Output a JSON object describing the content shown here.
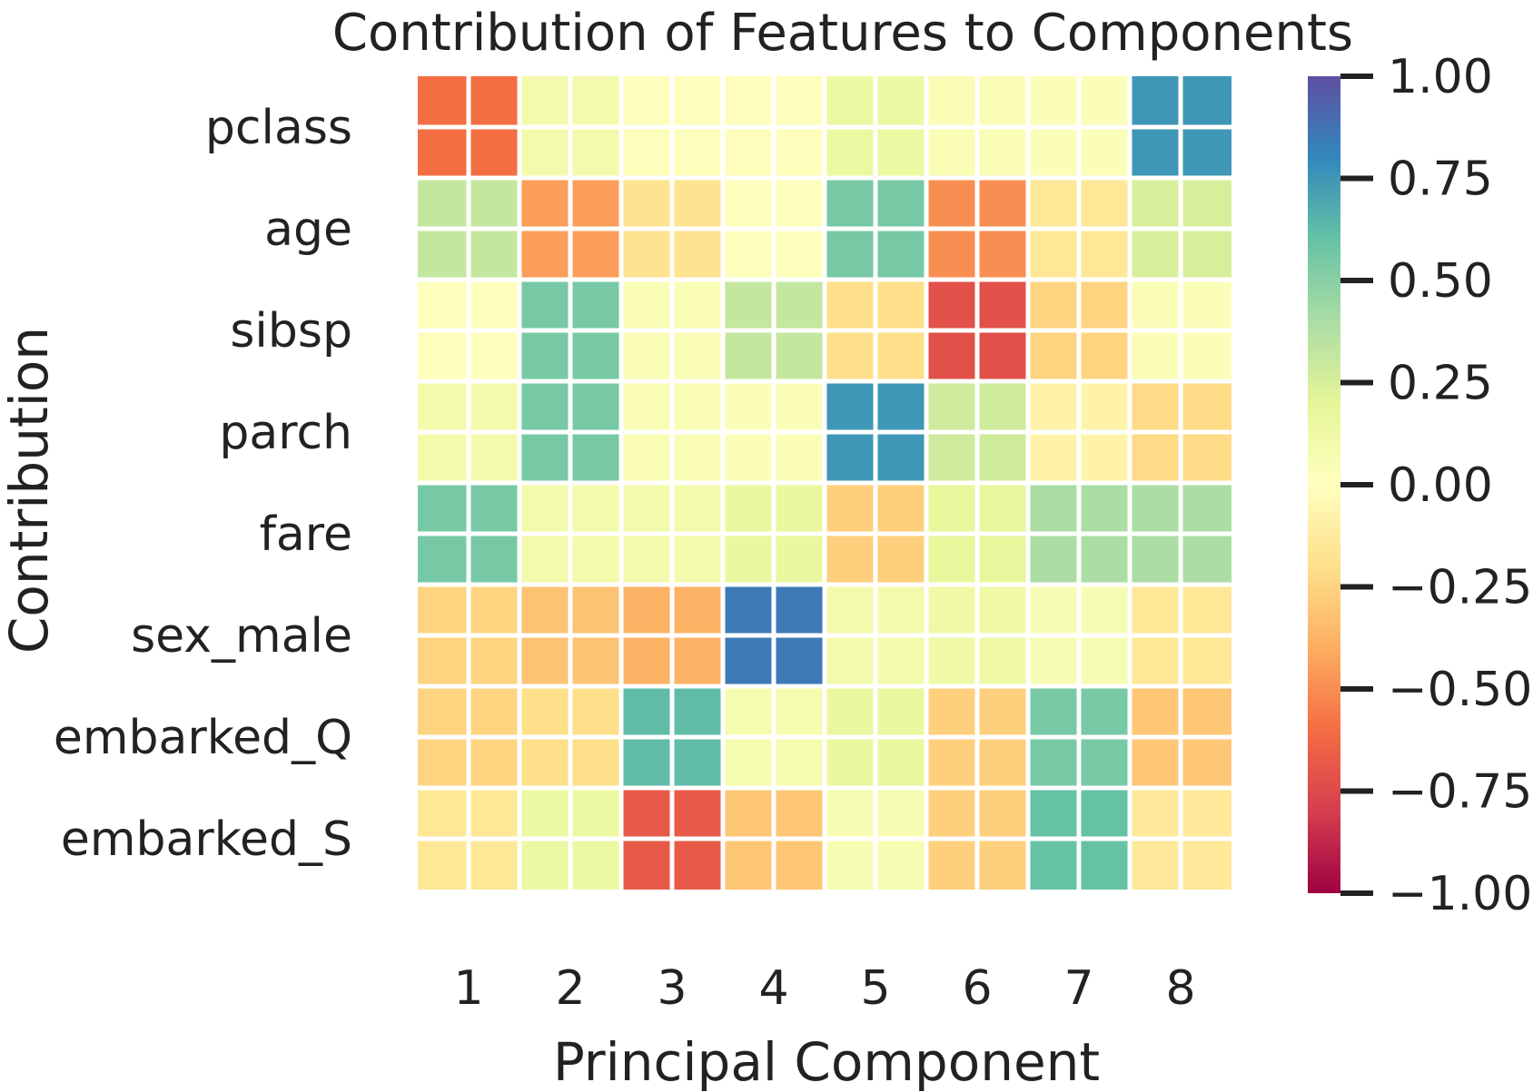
{
  "chart_data": {
    "type": "heatmap",
    "title": "Contribution of Features to Components",
    "xlabel": "Principal Component",
    "ylabel": "Contribution",
    "x_ticks": [
      "1",
      "2",
      "3",
      "4",
      "5",
      "6",
      "7",
      "8"
    ],
    "y_ticks": [
      "pclass",
      "age",
      "sibsp",
      "parch",
      "fare",
      "sex_male",
      "embarked_Q",
      "embarked_S"
    ],
    "values": [
      [
        -0.6,
        0.1,
        0.02,
        -0.01,
        0.15,
        0.05,
        0.03,
        0.75
      ],
      [
        0.32,
        -0.45,
        -0.18,
        0.02,
        0.55,
        -0.5,
        -0.15,
        0.25
      ],
      [
        0.02,
        0.55,
        0.05,
        0.32,
        -0.2,
        -0.72,
        -0.25,
        0.03
      ],
      [
        0.1,
        0.55,
        0.05,
        0.03,
        0.75,
        0.28,
        -0.08,
        -0.22
      ],
      [
        0.55,
        0.1,
        0.1,
        0.17,
        -0.27,
        0.18,
        0.4,
        0.4
      ],
      [
        -0.25,
        -0.32,
        -0.38,
        0.85,
        0.1,
        0.13,
        0.06,
        -0.15
      ],
      [
        -0.25,
        -0.2,
        0.62,
        0.08,
        0.17,
        -0.27,
        0.55,
        -0.3
      ],
      [
        -0.15,
        0.15,
        -0.68,
        -0.3,
        0.06,
        -0.27,
        0.6,
        -0.14
      ]
    ],
    "vmin": -1.0,
    "vmax": 1.0,
    "colormap": "Spectral",
    "colorbar_ticks": [
      "1.00",
      "0.75",
      "0.50",
      "0.25",
      "0.00",
      "−0.25",
      "−0.50",
      "−0.75",
      "−1.00"
    ],
    "grid_color": "#ffffff",
    "colorbar_stops": [
      "#9e0142",
      "#d53e4f",
      "#f46d43",
      "#fdae61",
      "#fee08b",
      "#ffffbf",
      "#e6f598",
      "#abdda4",
      "#66c2a5",
      "#3288bd",
      "#5e4fa2"
    ]
  }
}
